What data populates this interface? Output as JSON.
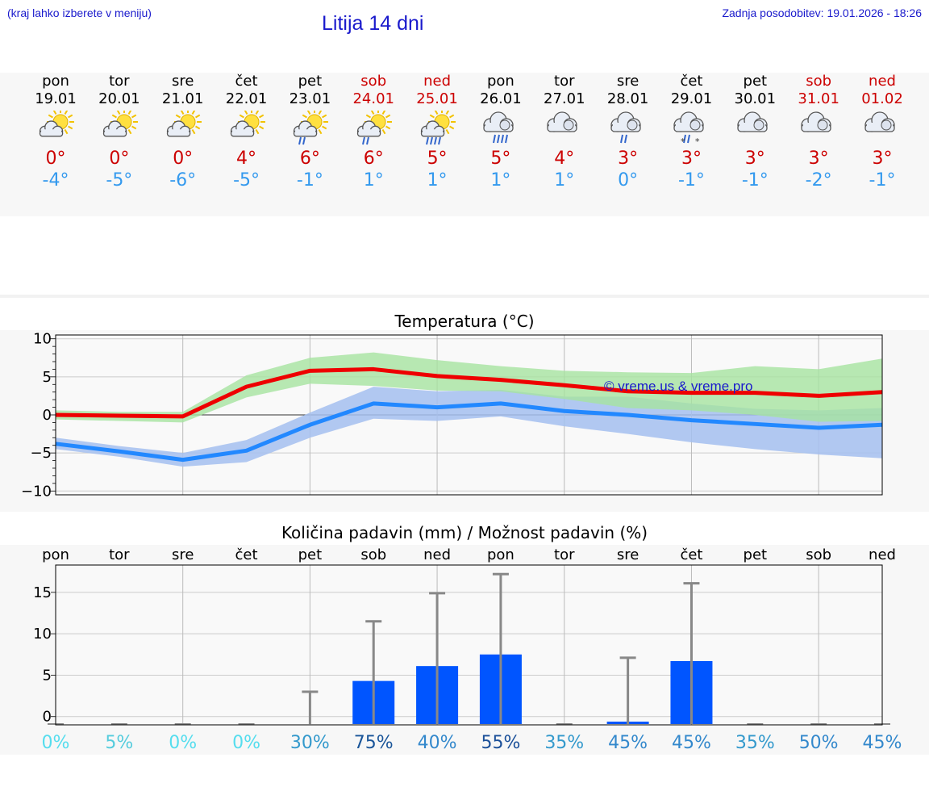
{
  "header": {
    "region_hint": "(kraj lahko izberete v meniju)",
    "title": "Litija 14 dni",
    "updated": "Zadnja posodobitev: 19.01.2026 - 18:26"
  },
  "colors": {
    "link_blue": "#1a1acc",
    "max_temp": "#cc0000",
    "min_temp": "#3399ee",
    "weekend": "#cc0000",
    "max_band": "#a6e3a0",
    "min_band": "#a4bff0",
    "overlap_band": "#7fc0a8",
    "bar_blue": "#0055ff",
    "error_bar": "#888888"
  },
  "forecast": {
    "days": [
      {
        "name": "pon",
        "date": "19.01",
        "weekend": false,
        "icon": "sun-cloud-icon",
        "tmax": "0°",
        "tmin": "-4°"
      },
      {
        "name": "tor",
        "date": "20.01",
        "weekend": false,
        "icon": "sun-cloud-icon",
        "tmax": "0°",
        "tmin": "-5°"
      },
      {
        "name": "sre",
        "date": "21.01",
        "weekend": false,
        "icon": "sun-cloud-icon",
        "tmax": "0°",
        "tmin": "-6°"
      },
      {
        "name": "čet",
        "date": "22.01",
        "weekend": false,
        "icon": "sun-cloud-icon",
        "tmax": "4°",
        "tmin": "-5°"
      },
      {
        "name": "pet",
        "date": "23.01",
        "weekend": false,
        "icon": "sun-cloud-rain-light-icon",
        "tmax": "6°",
        "tmin": "-1°"
      },
      {
        "name": "sob",
        "date": "24.01",
        "weekend": true,
        "icon": "sun-cloud-rain-light-icon",
        "tmax": "6°",
        "tmin": "1°"
      },
      {
        "name": "ned",
        "date": "25.01",
        "weekend": true,
        "icon": "sun-cloud-rain-icon",
        "tmax": "5°",
        "tmin": "1°"
      },
      {
        "name": "pon",
        "date": "26.01",
        "weekend": false,
        "icon": "cloud-rain-icon",
        "tmax": "5°",
        "tmin": "1°"
      },
      {
        "name": "tor",
        "date": "27.01",
        "weekend": false,
        "icon": "cloud-icon",
        "tmax": "4°",
        "tmin": "1°"
      },
      {
        "name": "sre",
        "date": "28.01",
        "weekend": false,
        "icon": "cloud-rain-light-icon",
        "tmax": "3°",
        "tmin": "0°"
      },
      {
        "name": "čet",
        "date": "29.01",
        "weekend": false,
        "icon": "cloud-sleet-icon",
        "tmax": "3°",
        "tmin": "-1°"
      },
      {
        "name": "pet",
        "date": "30.01",
        "weekend": false,
        "icon": "cloud-icon",
        "tmax": "3°",
        "tmin": "-1°"
      },
      {
        "name": "sob",
        "date": "31.01",
        "weekend": true,
        "icon": "cloud-icon",
        "tmax": "3°",
        "tmin": "-2°"
      },
      {
        "name": "ned",
        "date": "01.02",
        "weekend": true,
        "icon": "cloud-icon",
        "tmax": "3°",
        "tmin": "-1°"
      }
    ]
  },
  "chart_data": [
    {
      "type": "line",
      "title": "Temperatura (°C)",
      "xlabel": "",
      "ylabel": "",
      "x": [
        0,
        1,
        2,
        3,
        4,
        5,
        6,
        7,
        8,
        9,
        10,
        11,
        12,
        13
      ],
      "ylim": [
        -10.5,
        10.5
      ],
      "yticks": [
        10,
        5,
        0,
        -5,
        -10
      ],
      "ytick_labels": [
        "10",
        "5",
        "0",
        "−5",
        "−10"
      ],
      "grid": true,
      "watermark": "© vreme.us & vreme.pro",
      "series": [
        {
          "name": "max",
          "values": [
            0,
            -0.1,
            -0.2,
            3.7,
            5.8,
            6.0,
            5.1,
            4.6,
            3.9,
            3.1,
            2.9,
            2.9,
            2.5,
            3.0
          ],
          "band_low": [
            -0.6,
            -0.8,
            -1.0,
            2.3,
            4.1,
            3.8,
            3.2,
            3.1,
            2.1,
            0.9,
            0.6,
            0.0,
            -0.9,
            -0.8
          ],
          "band_high": [
            0.6,
            0.4,
            0.4,
            5.2,
            7.5,
            8.2,
            7.2,
            6.4,
            5.8,
            5.6,
            5.5,
            6.4,
            6.0,
            7.4
          ]
        },
        {
          "name": "min",
          "values": [
            -3.8,
            -4.8,
            -5.9,
            -4.7,
            -1.3,
            1.5,
            1.0,
            1.5,
            0.5,
            0.0,
            -0.7,
            -1.2,
            -1.7,
            -1.3
          ],
          "band_low": [
            -4.5,
            -5.5,
            -6.8,
            -6.2,
            -3.0,
            -0.5,
            -0.8,
            -0.2,
            -1.5,
            -2.5,
            -3.6,
            -4.5,
            -5.2,
            -5.7
          ],
          "band_high": [
            -3.0,
            -4.1,
            -5.0,
            -3.3,
            0.3,
            3.7,
            3.1,
            3.3,
            2.4,
            2.4,
            1.5,
            0.8,
            0.6,
            0.9
          ]
        }
      ]
    },
    {
      "type": "bar",
      "title": "Količina padavin (mm) / Možnost padavin (%)",
      "xlabel": "",
      "ylabel": "",
      "categories": [
        "pon",
        "tor",
        "sre",
        "čet",
        "pet",
        "sob",
        "ned",
        "pon",
        "tor",
        "sre",
        "čet",
        "pet",
        "sob",
        "ned"
      ],
      "ylim": [
        -1,
        18.3
      ],
      "yticks": [
        15,
        10,
        5,
        0
      ],
      "ytick_labels": [
        "15",
        "10",
        "5",
        "0"
      ],
      "grid": true,
      "values": [
        0,
        0,
        0,
        0,
        0,
        4.3,
        6.1,
        7.5,
        0,
        0.3,
        6.7,
        0,
        0,
        0
      ],
      "error_high": [
        0,
        0,
        0,
        0,
        3.0,
        11.5,
        14.9,
        17.2,
        0,
        7.1,
        16.1,
        0,
        0,
        0
      ],
      "probability": [
        "0%",
        "5%",
        "0%",
        "0%",
        "30%",
        "75%",
        "40%",
        "55%",
        "35%",
        "45%",
        "45%",
        "35%",
        "50%",
        "45%"
      ],
      "probability_colors": [
        "#55ddee",
        "#55ccdd",
        "#55ddee",
        "#55ddee",
        "#3399cc",
        "#1a5599",
        "#3388cc",
        "#1a4f99",
        "#3399cc",
        "#3388cc",
        "#3388cc",
        "#3399cc",
        "#3388cc",
        "#3388cc"
      ]
    }
  ]
}
